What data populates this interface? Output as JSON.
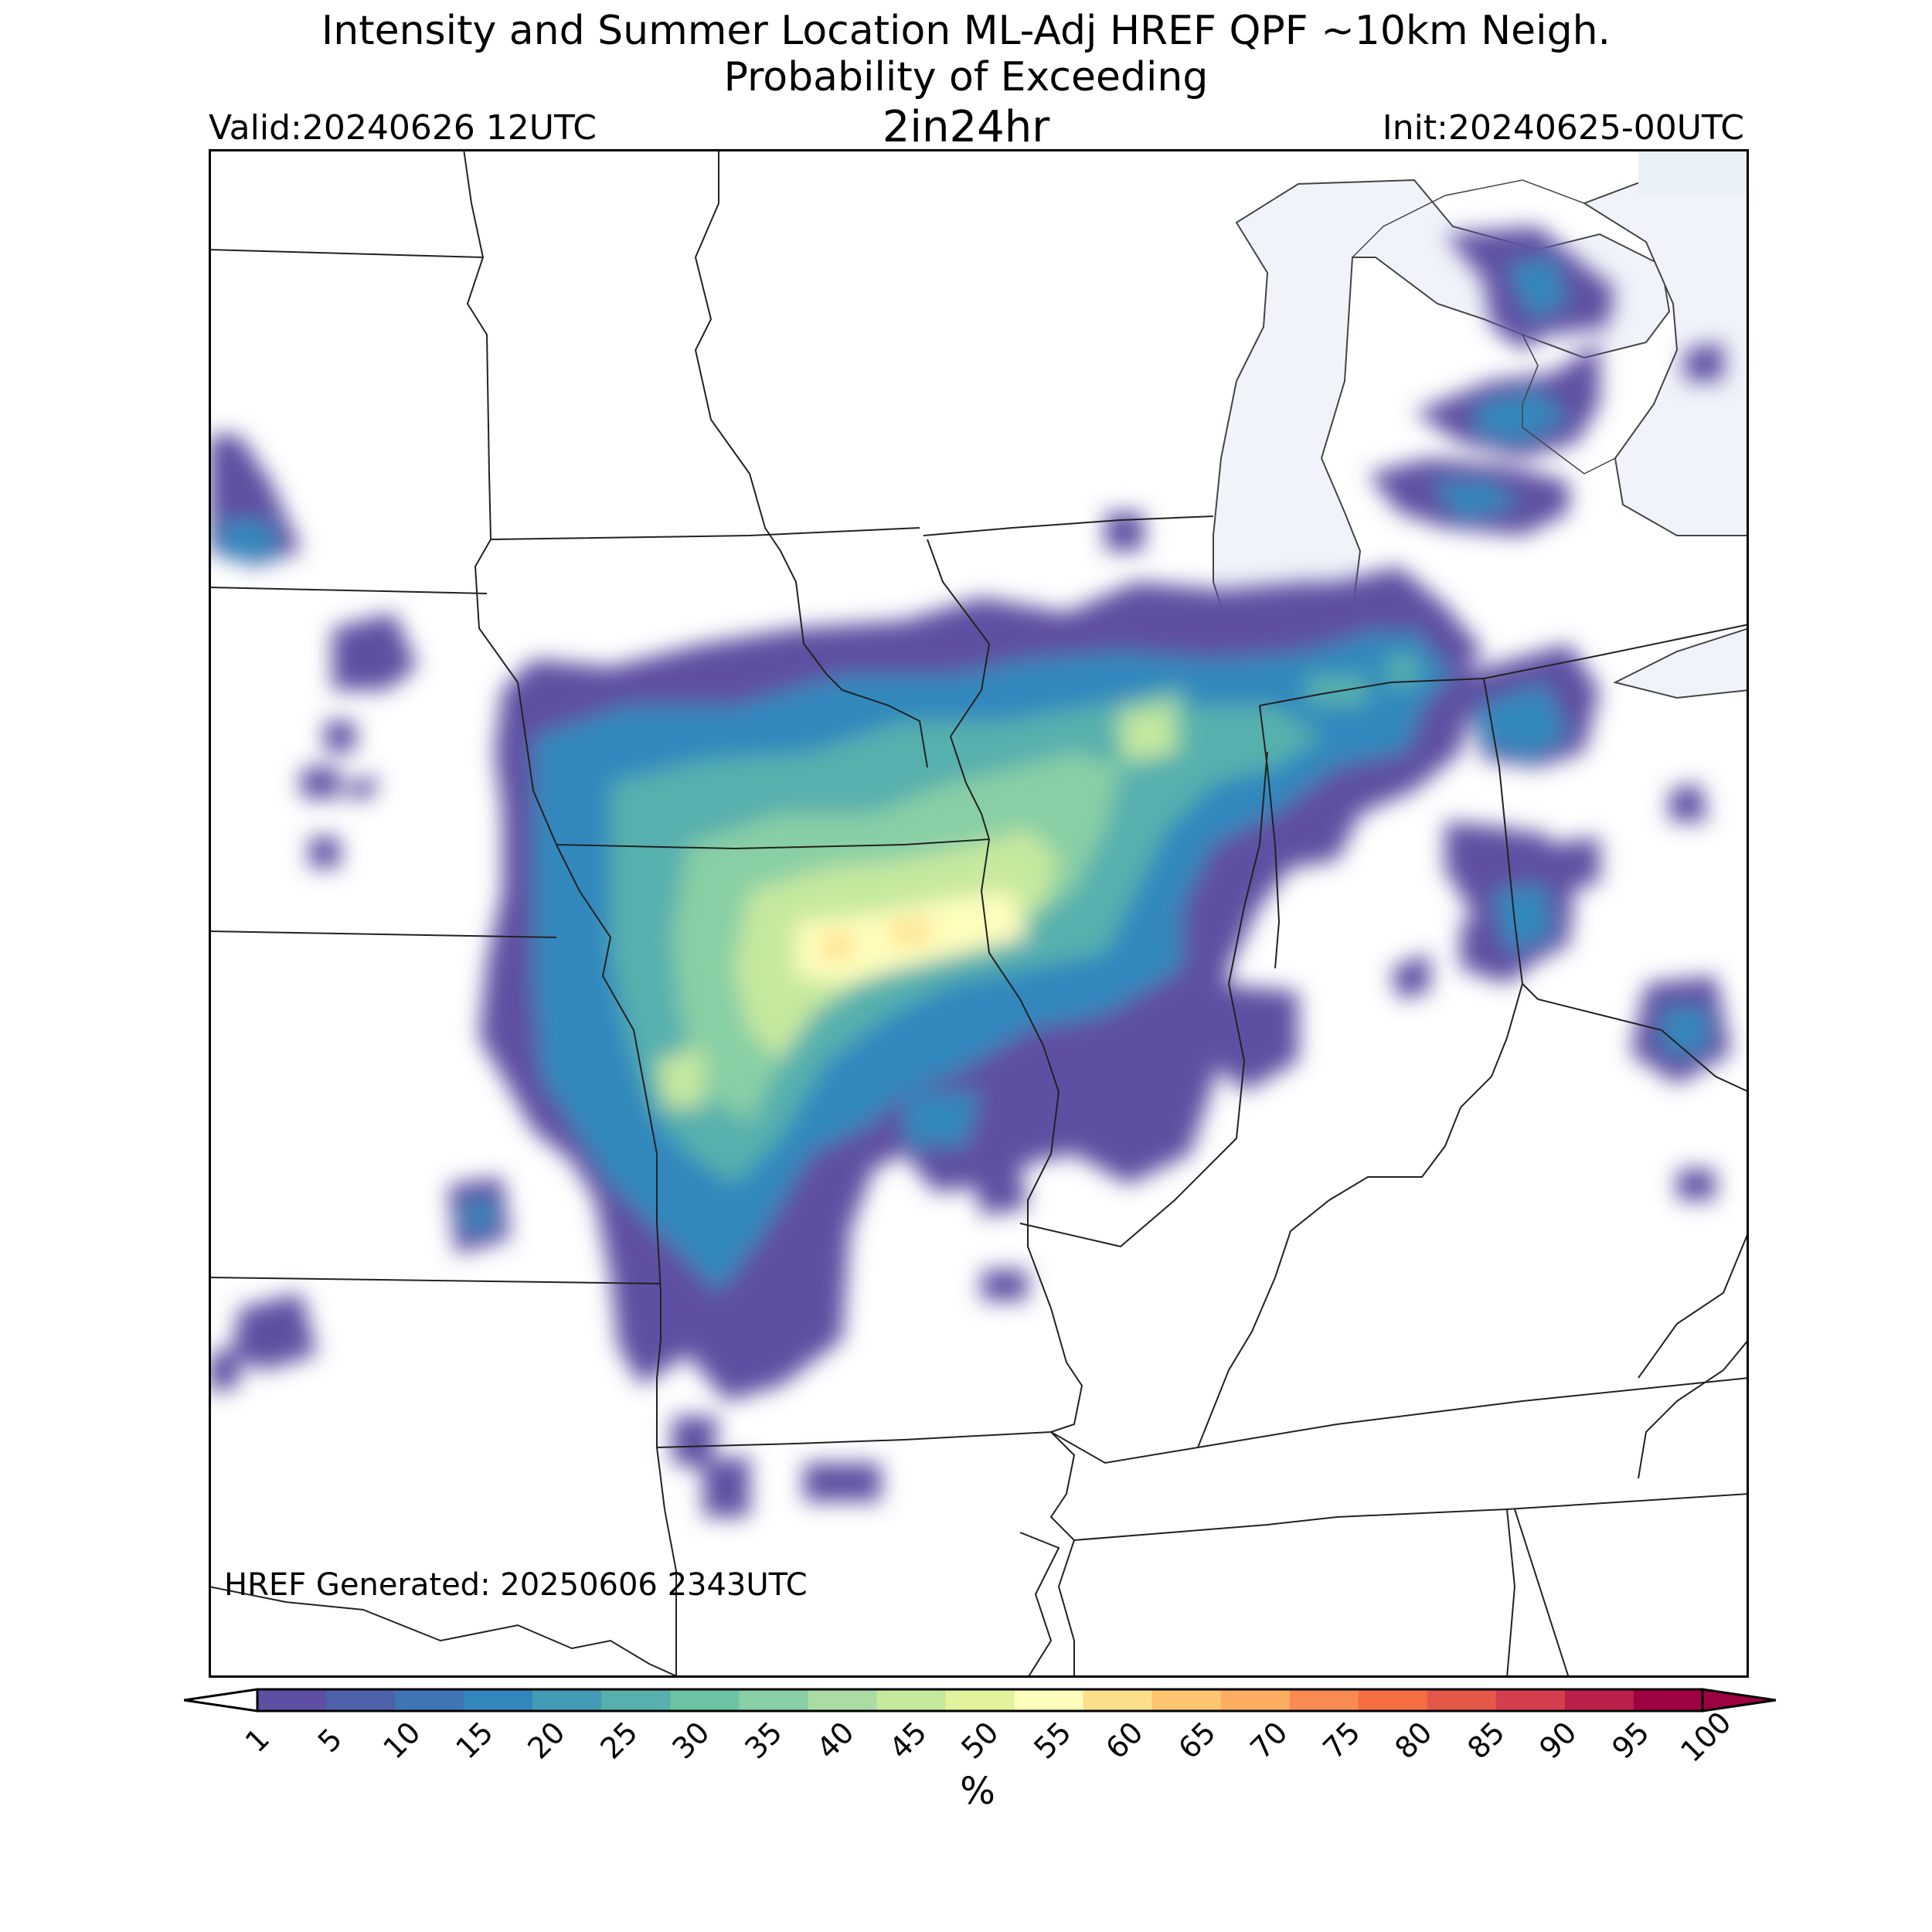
{
  "title": {
    "line1": "Intensity and Summer Location ML-Adj HREF QPF ~10km Neigh.",
    "line2": "Probability of Exceeding",
    "line3": "2in24hr"
  },
  "valid": "Valid:20240626 12UTC",
  "init": "Init:20240625-00UTC",
  "generated": "HREF Generated: 20250606 2343UTC",
  "colorbar": {
    "ticks": [
      "1",
      "5",
      "10",
      "15",
      "20",
      "25",
      "30",
      "35",
      "40",
      "45",
      "50",
      "55",
      "60",
      "65",
      "70",
      "75",
      "80",
      "85",
      "90",
      "95",
      "100"
    ],
    "colors": [
      "#5e4fa2",
      "#4e62ab",
      "#3f75b5",
      "#3288bd",
      "#439bb5",
      "#57b0ad",
      "#6bc3a4",
      "#89cfa5",
      "#aadca4",
      "#c6e89f",
      "#e2f49b",
      "#fefebd",
      "#fee08b",
      "#fdc56f",
      "#fdae61",
      "#f78b52",
      "#f46d43",
      "#e55749",
      "#d53e4f",
      "#b9204a",
      "#9e0142"
    ],
    "under_color": "#ffffff",
    "over_color": "#9e0142",
    "units": "%"
  }
}
